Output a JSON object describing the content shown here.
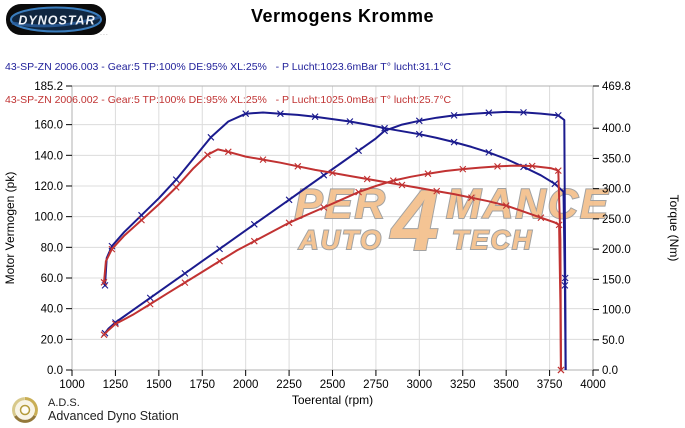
{
  "header": {
    "logo": {
      "text": "DYNOSTAR",
      "subtext": "..."
    }
  },
  "legend": [
    {
      "label": "43-SP-ZN 2006.003 - Gear:5 TP:100% DE:95% XL:25%   - P Lucht:1023.6mBar T° lucht:31.1°C",
      "color": "#22229b"
    },
    {
      "label": "43-SP-ZN 2006.002 - Gear:5 TP:100% DE:95% XL:25%   - P Lucht:1025.0mBar T° lucht:25.7°C",
      "color": "#c03333"
    }
  ],
  "watermark": {
    "pre": "PER",
    "num": "4",
    "post": "MANCE",
    "bottom_left": "AUTO",
    "bottom_right": "TECH",
    "fill": "#f4c08b",
    "stroke": "#9b9b9b"
  },
  "footer": {
    "abbr": "A.D.S.",
    "name": "Advanced Dyno Station"
  },
  "chart_data": {
    "type": "line",
    "title": "Vermogens Kromme",
    "xlabel": "Toerental (rpm)",
    "xlim": [
      1000,
      4000
    ],
    "x_ticks": [
      1000,
      1250,
      1500,
      1750,
      2000,
      2250,
      2500,
      2750,
      3000,
      3250,
      3500,
      3750,
      4000
    ],
    "grid": true,
    "y_left": {
      "label": "Motor Vermogen (pk)",
      "max": 185.2,
      "ticks": [
        0,
        20,
        40,
        60,
        80,
        100,
        120,
        140,
        160,
        185.2
      ]
    },
    "y_right": {
      "label": "Torque (Nm)",
      "max": 469.8,
      "ticks": [
        0,
        50,
        100,
        150,
        200,
        250,
        300,
        350,
        400,
        469.8
      ]
    },
    "series": [
      {
        "name": "power-run-003",
        "unit": "pk",
        "axis": "left",
        "color": "#1b1b8e",
        "points": [
          [
            1190,
            24
          ],
          [
            1210,
            27
          ],
          [
            1250,
            31
          ],
          [
            1350,
            39
          ],
          [
            1450,
            47
          ],
          [
            1550,
            55
          ],
          [
            1650,
            63
          ],
          [
            1750,
            71
          ],
          [
            1850,
            79
          ],
          [
            1950,
            87
          ],
          [
            2050,
            95
          ],
          [
            2150,
            103
          ],
          [
            2250,
            111
          ],
          [
            2350,
            119
          ],
          [
            2450,
            127
          ],
          [
            2550,
            135
          ],
          [
            2650,
            143
          ],
          [
            2750,
            151
          ],
          [
            2800,
            156
          ],
          [
            2900,
            160
          ],
          [
            3000,
            162.5
          ],
          [
            3100,
            164.5
          ],
          [
            3200,
            166
          ],
          [
            3300,
            167
          ],
          [
            3400,
            167.8
          ],
          [
            3500,
            168.3
          ],
          [
            3600,
            168
          ],
          [
            3700,
            167.2
          ],
          [
            3800,
            166
          ],
          [
            3835,
            163
          ],
          [
            3840,
            60
          ],
          [
            3843,
            0
          ]
        ]
      },
      {
        "name": "torque-run-003",
        "unit": "Nm",
        "axis": "right",
        "color": "#1b1b8e",
        "points": [
          [
            1190,
            140
          ],
          [
            1200,
            185
          ],
          [
            1230,
            205
          ],
          [
            1300,
            228
          ],
          [
            1400,
            256
          ],
          [
            1500,
            284
          ],
          [
            1600,
            315
          ],
          [
            1700,
            350
          ],
          [
            1800,
            385
          ],
          [
            1900,
            411
          ],
          [
            2000,
            424
          ],
          [
            2100,
            426
          ],
          [
            2200,
            424
          ],
          [
            2300,
            422
          ],
          [
            2400,
            419
          ],
          [
            2500,
            415
          ],
          [
            2600,
            411
          ],
          [
            2700,
            406
          ],
          [
            2800,
            400
          ],
          [
            2900,
            395
          ],
          [
            3000,
            390
          ],
          [
            3100,
            384
          ],
          [
            3200,
            377
          ],
          [
            3300,
            369
          ],
          [
            3400,
            360
          ],
          [
            3500,
            349
          ],
          [
            3600,
            336
          ],
          [
            3700,
            322
          ],
          [
            3780,
            308
          ],
          [
            3830,
            295
          ],
          [
            3838,
            140
          ],
          [
            3842,
            0
          ]
        ]
      },
      {
        "name": "power-run-002",
        "unit": "pk",
        "axis": "left",
        "color": "#c13232",
        "points": [
          [
            1184,
            23
          ],
          [
            1210,
            26
          ],
          [
            1250,
            30
          ],
          [
            1350,
            36
          ],
          [
            1450,
            43
          ],
          [
            1550,
            50
          ],
          [
            1650,
            57
          ],
          [
            1750,
            64
          ],
          [
            1850,
            71
          ],
          [
            1950,
            78
          ],
          [
            2050,
            84
          ],
          [
            2150,
            90
          ],
          [
            2250,
            96
          ],
          [
            2350,
            101
          ],
          [
            2450,
            106
          ],
          [
            2550,
            111
          ],
          [
            2650,
            116
          ],
          [
            2750,
            120
          ],
          [
            2850,
            123.5
          ],
          [
            2950,
            126
          ],
          [
            3050,
            128
          ],
          [
            3150,
            129.8
          ],
          [
            3250,
            131
          ],
          [
            3350,
            132
          ],
          [
            3450,
            132.8
          ],
          [
            3550,
            133.3
          ],
          [
            3650,
            133
          ],
          [
            3760,
            131.5
          ],
          [
            3800,
            130
          ],
          [
            3812,
            85
          ],
          [
            3816,
            0
          ]
        ]
      },
      {
        "name": "torque-run-002",
        "unit": "Nm",
        "axis": "right",
        "color": "#c13232",
        "points": [
          [
            1184,
            145
          ],
          [
            1195,
            180
          ],
          [
            1230,
            200
          ],
          [
            1300,
            222
          ],
          [
            1400,
            248
          ],
          [
            1500,
            274
          ],
          [
            1600,
            302
          ],
          [
            1700,
            334
          ],
          [
            1780,
            356
          ],
          [
            1840,
            365
          ],
          [
            1900,
            361
          ],
          [
            2000,
            353
          ],
          [
            2100,
            348
          ],
          [
            2200,
            343
          ],
          [
            2300,
            337
          ],
          [
            2400,
            331
          ],
          [
            2500,
            326
          ],
          [
            2600,
            321
          ],
          [
            2700,
            316
          ],
          [
            2800,
            311
          ],
          [
            2900,
            306
          ],
          [
            3000,
            301
          ],
          [
            3100,
            296
          ],
          [
            3200,
            291
          ],
          [
            3300,
            285
          ],
          [
            3400,
            279
          ],
          [
            3500,
            272
          ],
          [
            3600,
            262
          ],
          [
            3700,
            252
          ],
          [
            3780,
            244
          ],
          [
            3805,
            240
          ],
          [
            3812,
            110
          ],
          [
            3815,
            0
          ]
        ]
      }
    ]
  }
}
